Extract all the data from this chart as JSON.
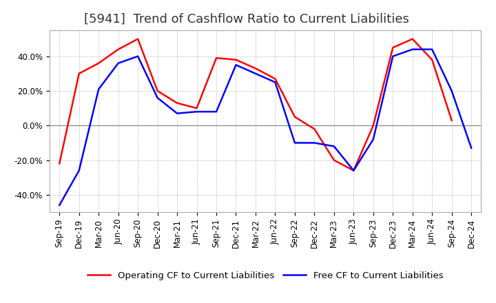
{
  "title": "[5941]  Trend of Cashflow Ratio to Current Liabilities",
  "ylim": [
    -50,
    55
  ],
  "yticks": [
    -40,
    -20,
    0,
    20,
    40
  ],
  "ytick_labels": [
    "-40.0%",
    "-20.0%",
    "0.0%",
    "20.0%",
    "40.0%"
  ],
  "x_labels": [
    "Sep-19",
    "Dec-19",
    "Mar-20",
    "Jun-20",
    "Sep-20",
    "Dec-20",
    "Mar-21",
    "Jun-21",
    "Sep-21",
    "Dec-21",
    "Mar-22",
    "Jun-22",
    "Sep-22",
    "Dec-22",
    "Mar-23",
    "Jun-23",
    "Sep-23",
    "Dec-23",
    "Mar-24",
    "Jun-24",
    "Sep-24",
    "Dec-24"
  ],
  "operating_cf": [
    -22,
    30,
    36,
    44,
    50,
    20,
    13,
    10,
    39,
    38,
    33,
    27,
    5,
    -2,
    -20,
    -26,
    0,
    45,
    50,
    38,
    3,
    null
  ],
  "free_cf": [
    -46,
    -26,
    21,
    36,
    40,
    16,
    7,
    8,
    8,
    35,
    30,
    25,
    -10,
    -10,
    -12,
    -26,
    -8,
    40,
    44,
    44,
    20,
    -13
  ],
  "operating_color": "#ff0000",
  "free_color": "#0000ff",
  "legend_labels": [
    "Operating CF to Current Liabilities",
    "Free CF to Current Liabilities"
  ],
  "background_color": "#ffffff",
  "grid_color": "#aaaaaa",
  "title_fontsize": 13,
  "tick_fontsize": 8.5,
  "legend_fontsize": 9.5
}
